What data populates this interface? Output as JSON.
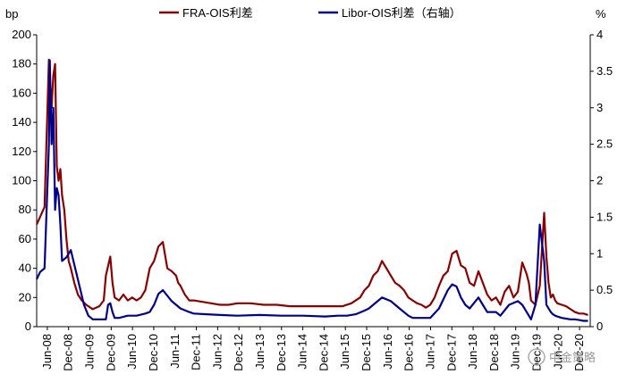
{
  "chart_data": {
    "type": "line",
    "title": "",
    "y_left": {
      "unit": "bp",
      "min": 0,
      "max": 200,
      "ticks": [
        "0",
        "20",
        "40",
        "60",
        "80",
        "100",
        "120",
        "140",
        "160",
        "180",
        "200"
      ]
    },
    "y_right": {
      "unit": "%",
      "min": 0,
      "max": 4,
      "ticks": [
        "0",
        "0.5",
        "1",
        "1.5",
        "2",
        "2.5",
        "3",
        "3.5",
        "4"
      ]
    },
    "x_ticks": [
      "Jun-08",
      "Dec-08",
      "Jun-09",
      "Dec-09",
      "Jun-10",
      "Dec-10",
      "Jun-11",
      "Dec-11",
      "Jun-12",
      "Dec-12",
      "Jun-13",
      "Dec-13",
      "Jun-14",
      "Dec-14",
      "Jun-15",
      "Dec-15",
      "Jun-16",
      "Dec-16",
      "Jun-17",
      "Dec-17",
      "Jun-18",
      "Dec-18",
      "Jun-19",
      "Dec-19",
      "Jun-20",
      "Dec-20"
    ],
    "legend_position": "top",
    "series": [
      {
        "name": "FRA-OIS利差",
        "axis": "left",
        "color": "#8B0000",
        "x": [
          2008.42,
          2008.6,
          2008.7,
          2008.76,
          2008.8,
          2008.84,
          2008.88,
          2008.92,
          2008.96,
          2009.0,
          2009.05,
          2009.1,
          2009.15,
          2009.2,
          2009.28,
          2009.36,
          2009.45,
          2009.55,
          2009.7,
          2009.85,
          2009.95,
          2010.0,
          2010.1,
          2010.15,
          2010.2,
          2010.3,
          2010.4,
          2010.5,
          2010.6,
          2010.7,
          2010.8,
          2010.9,
          2011.0,
          2011.1,
          2011.2,
          2011.3,
          2011.4,
          2011.5,
          2011.6,
          2011.65,
          2011.7,
          2011.8,
          2011.9,
          2012.0,
          2012.2,
          2012.4,
          2012.6,
          2012.8,
          2013.0,
          2013.3,
          2013.6,
          2013.9,
          2014.2,
          2014.5,
          2014.8,
          2015.1,
          2015.4,
          2015.6,
          2015.8,
          2015.9,
          2016.0,
          2016.1,
          2016.2,
          2016.3,
          2016.4,
          2016.5,
          2016.6,
          2016.7,
          2016.8,
          2016.9,
          2017.0,
          2017.1,
          2017.2,
          2017.3,
          2017.4,
          2017.5,
          2017.6,
          2017.7,
          2017.8,
          2017.9,
          2018.0,
          2018.1,
          2018.2,
          2018.3,
          2018.4,
          2018.5,
          2018.6,
          2018.7,
          2018.8,
          2018.9,
          2019.0,
          2019.1,
          2019.2,
          2019.3,
          2019.4,
          2019.5,
          2019.55,
          2019.6,
          2019.65,
          2019.7,
          2019.8,
          2019.9,
          2020.0,
          2020.05,
          2020.1,
          2020.15,
          2020.2,
          2020.25,
          2020.3,
          2020.4,
          2020.5,
          2020.6,
          2020.7,
          2020.8,
          2020.9,
          2021.0
        ],
        "values": [
          70,
          82,
          183,
          150,
          172,
          180,
          110,
          100,
          108,
          90,
          80,
          60,
          45,
          40,
          30,
          22,
          18,
          15,
          12,
          14,
          18,
          35,
          48,
          30,
          20,
          18,
          22,
          18,
          20,
          18,
          20,
          25,
          40,
          45,
          55,
          58,
          40,
          38,
          35,
          30,
          28,
          22,
          18,
          18,
          17,
          16,
          15,
          15,
          16,
          16,
          15,
          15,
          14,
          14,
          14,
          14,
          14,
          16,
          20,
          25,
          28,
          35,
          38,
          45,
          40,
          35,
          30,
          28,
          25,
          20,
          18,
          16,
          15,
          13,
          15,
          20,
          28,
          35,
          38,
          50,
          52,
          42,
          40,
          30,
          28,
          38,
          30,
          22,
          18,
          20,
          15,
          24,
          28,
          20,
          24,
          44,
          40,
          36,
          30,
          18,
          15,
          28,
          78,
          48,
          30,
          20,
          22,
          18,
          16,
          15,
          14,
          12,
          10,
          9,
          9,
          8
        ]
      },
      {
        "name": "Libor-OIS利差（右轴）",
        "axis": "right",
        "color": "#00008B",
        "x": [
          2008.42,
          2008.5,
          2008.6,
          2008.7,
          2008.72,
          2008.76,
          2008.8,
          2008.84,
          2008.88,
          2008.92,
          2008.96,
          2009.0,
          2009.1,
          2009.2,
          2009.3,
          2009.4,
          2009.5,
          2009.6,
          2009.7,
          2009.8,
          2009.9,
          2010.0,
          2010.05,
          2010.1,
          2010.15,
          2010.2,
          2010.3,
          2010.5,
          2010.7,
          2010.9,
          2011.0,
          2011.1,
          2011.2,
          2011.3,
          2011.5,
          2011.7,
          2011.9,
          2012.0,
          2012.3,
          2012.6,
          2013.0,
          2013.5,
          2014.0,
          2014.5,
          2015.0,
          2015.3,
          2015.5,
          2015.7,
          2015.9,
          2016.0,
          2016.1,
          2016.2,
          2016.3,
          2016.5,
          2016.7,
          2016.9,
          2017.0,
          2017.2,
          2017.4,
          2017.6,
          2017.8,
          2017.9,
          2018.0,
          2018.1,
          2018.2,
          2018.3,
          2018.5,
          2018.6,
          2018.7,
          2018.9,
          2019.0,
          2019.2,
          2019.4,
          2019.5,
          2019.55,
          2019.6,
          2019.65,
          2019.7,
          2019.8,
          2019.9,
          2020.0,
          2020.05,
          2020.1,
          2020.15,
          2020.2,
          2020.25,
          2020.3,
          2020.4,
          2020.5,
          2020.6,
          2020.7,
          2020.8,
          2020.9,
          2021.0
        ],
        "values": [
          0.65,
          0.75,
          0.8,
          2.5,
          3.65,
          2.5,
          3.0,
          1.6,
          1.9,
          1.8,
          1.4,
          0.9,
          0.95,
          1.05,
          0.8,
          0.55,
          0.3,
          0.15,
          0.1,
          0.1,
          0.1,
          0.1,
          0.3,
          0.32,
          0.2,
          0.12,
          0.12,
          0.15,
          0.15,
          0.18,
          0.2,
          0.3,
          0.45,
          0.5,
          0.35,
          0.25,
          0.2,
          0.18,
          0.17,
          0.16,
          0.15,
          0.16,
          0.15,
          0.15,
          0.14,
          0.15,
          0.15,
          0.17,
          0.22,
          0.25,
          0.3,
          0.35,
          0.4,
          0.35,
          0.25,
          0.15,
          0.12,
          0.12,
          0.12,
          0.25,
          0.5,
          0.58,
          0.55,
          0.4,
          0.3,
          0.25,
          0.4,
          0.3,
          0.2,
          0.2,
          0.15,
          0.3,
          0.35,
          0.3,
          0.25,
          0.2,
          0.15,
          0.1,
          0.3,
          1.4,
          0.9,
          0.3,
          0.25,
          0.2,
          0.17,
          0.15,
          0.14,
          0.12,
          0.11,
          0.1,
          0.1,
          0.09,
          0.08,
          0.08
        ]
      }
    ]
  },
  "watermark": {
    "text": "中金策略"
  }
}
